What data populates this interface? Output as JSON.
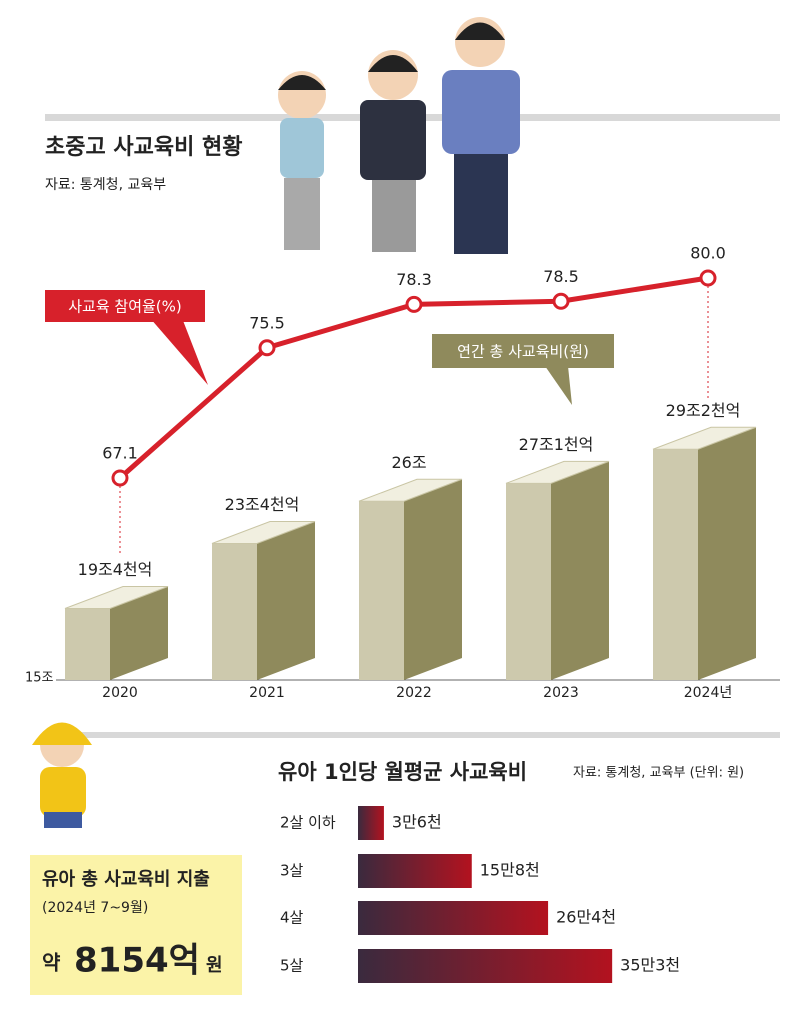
{
  "title": "초중고 사교육비 현황",
  "source": "자료: 통계청, 교육부",
  "chart_data": [
    {
      "type": "bar",
      "categories": [
        "2020",
        "2021",
        "2022",
        "2023",
        "2024년"
      ],
      "ylim": [
        15,
        31
      ],
      "yticks": [
        {
          "value": 15,
          "label": "15조"
        }
      ],
      "y2lim": [
        60,
        90
      ],
      "series": [
        {
          "name": "연간 총 사교육비(원)",
          "type": "bar",
          "color": "#8f8a5c",
          "values": [
            19.4,
            23.4,
            26,
            27.1,
            29.2
          ],
          "value_labels": [
            "19조4천억",
            "23조4천억",
            "26조",
            "27조1천억",
            "29조2천억"
          ]
        },
        {
          "name": "사교육 참여율(%)",
          "type": "line",
          "axis": "y2",
          "color": "#d7212b",
          "values": [
            67.1,
            75.5,
            78.3,
            78.5,
            80.0
          ],
          "value_labels": [
            "67.1",
            "75.5",
            "78.3",
            "78.5",
            "80.0"
          ]
        }
      ]
    },
    {
      "type": "hbar",
      "title": "유아 1인당 월평균 사교육비",
      "source": "자료: 통계청, 교육부 (단위: 원)",
      "categories": [
        "2살 이하",
        "3살",
        "4살",
        "5살"
      ],
      "values": [
        36000,
        158000,
        264000,
        353000
      ],
      "value_labels": [
        "3만6천",
        "15만8천",
        "26만4천",
        "35만3천"
      ],
      "xlim": [
        0,
        400000
      ],
      "colors": [
        "#3a2a3e",
        "#b3121f"
      ]
    }
  ],
  "infobox": {
    "title": "유아 총 사교육비 지출",
    "period": "(2024년 7~9월)",
    "prefix": "약",
    "amount": "8154억",
    "unit": "원"
  }
}
